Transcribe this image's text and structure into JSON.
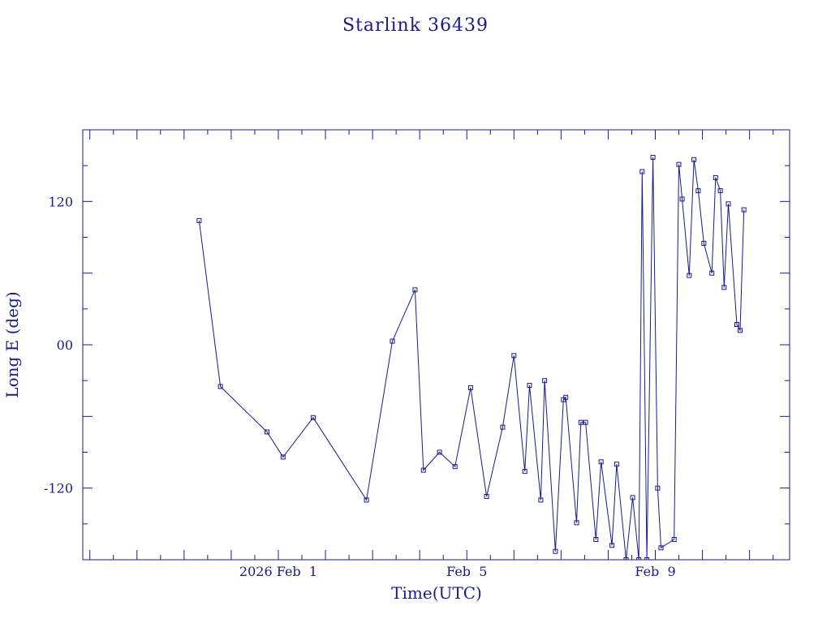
{
  "chart_data": {
    "type": "line",
    "title": "Starlink 36439",
    "xlabel": "Time(UTC)",
    "ylabel": "Long E (deg)",
    "xlim": [
      -4.15,
      10.85
    ],
    "ylim": [
      -180,
      180
    ],
    "xticks": [
      {
        "x": 0,
        "label": "2026 Feb  1"
      },
      {
        "x": 4,
        "label": "Feb  5"
      },
      {
        "x": 8,
        "label": "Feb  9"
      }
    ],
    "yticks": [
      {
        "y": 120,
        "label": "120"
      },
      {
        "y": 0,
        "label": "00"
      },
      {
        "y": -120,
        "label": "-120"
      }
    ],
    "color": "#1a1a8c",
    "grid": false,
    "series": [
      {
        "x": [
          -1.68,
          -1.23,
          -0.24,
          0.1,
          0.74,
          1.87,
          2.42,
          2.9,
          3.08,
          3.42,
          3.75,
          4.08,
          4.42,
          4.76,
          5.0,
          5.23,
          5.33,
          5.57,
          5.65,
          5.88,
          6.05,
          6.1,
          6.33,
          6.42,
          6.52,
          6.74,
          6.85,
          7.08,
          7.18,
          7.38,
          7.52,
          7.65,
          7.72,
          7.82,
          7.95,
          8.05,
          8.12,
          8.4,
          8.5,
          8.57,
          8.72,
          8.82,
          8.91,
          9.03,
          9.2,
          9.28,
          9.38,
          9.46,
          9.55,
          9.73,
          9.8,
          9.88
        ],
        "y": [
          104,
          -35,
          -73,
          -94,
          -61,
          -130,
          3,
          46,
          -105,
          -90,
          -102,
          -36,
          -127,
          -69,
          -9,
          -106,
          -34,
          -130,
          -30,
          -173,
          -46,
          -44,
          -149,
          -65,
          -65,
          -163,
          -98,
          -168,
          -100,
          -180,
          -128,
          -180,
          145,
          -180,
          157,
          -120,
          -170,
          -163,
          151,
          122,
          58,
          155,
          129,
          85,
          60,
          140,
          129,
          48,
          118,
          17,
          12,
          113
        ]
      }
    ]
  }
}
